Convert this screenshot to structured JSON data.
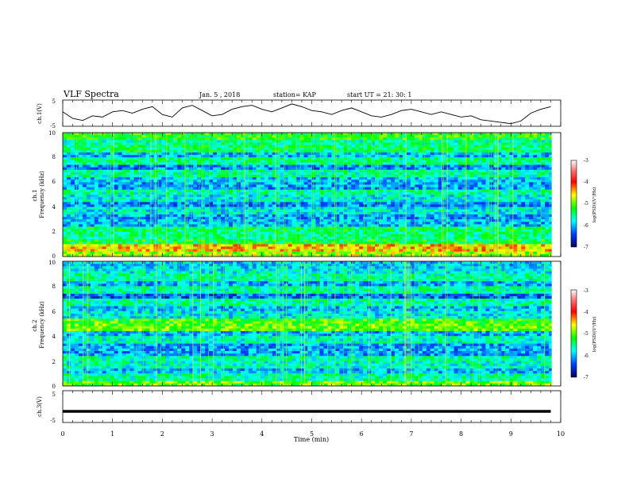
{
  "header": {
    "title": "VLF Spectra",
    "date": "Jan. 5 , 2018",
    "station": "station= KAP",
    "start_time": "start  UT =   21: 30: 1"
  },
  "chart_data": [
    {
      "type": "line",
      "title": "VLF Spectra",
      "ylabel": "ch.1(V)",
      "ylim": [
        -5,
        5
      ],
      "xlim": [
        0,
        10
      ],
      "yticks": [
        "5",
        "-5"
      ],
      "series": [
        {
          "x": [
            0,
            0.2,
            0.4,
            0.6,
            0.8,
            1.0,
            1.2,
            1.4,
            1.6,
            1.8,
            2.0,
            2.2,
            2.4,
            2.6,
            2.8,
            3.0,
            3.2,
            3.4,
            3.6,
            3.8,
            4.0,
            4.2,
            4.4,
            4.6,
            4.8,
            5.0,
            5.2,
            5.4,
            5.6,
            5.8,
            6.0,
            6.2,
            6.4,
            6.6,
            6.8,
            7.0,
            7.2,
            7.4,
            7.6,
            7.8,
            8.0,
            8.2,
            8.4,
            8.6,
            8.8,
            9.0,
            9.2,
            9.4,
            9.6,
            9.8
          ],
          "values": [
            0.5,
            -2.0,
            -2.8,
            -1.0,
            -1.5,
            0.5,
            1.0,
            0.0,
            1.5,
            2.5,
            -0.5,
            -1.5,
            2.0,
            3.0,
            1.0,
            -1.0,
            -0.5,
            1.5,
            2.5,
            3.0,
            1.5,
            0.5,
            2.0,
            3.5,
            2.5,
            1.0,
            0.5,
            -0.5,
            1.0,
            2.0,
            0.5,
            -1.0,
            -1.5,
            -0.5,
            1.0,
            1.5,
            0.5,
            -0.5,
            0.5,
            -0.5,
            -1.5,
            -1.0,
            -2.5,
            -3.0,
            -3.5,
            -4.0,
            -3.0,
            0.0,
            1.5,
            2.5
          ]
        }
      ]
    },
    {
      "type": "heatmap",
      "ylabel": "ch.1\nFrequency (kHz)",
      "ylim": [
        0,
        10
      ],
      "xlim": [
        0,
        10
      ],
      "yticks": [
        "0",
        "2",
        "4",
        "6",
        "8",
        "10"
      ],
      "colorbar": {
        "label": "log(PSD)(V²/Hz)",
        "ticks": [
          "-3",
          "-4",
          "-5",
          "-6",
          "-7"
        ],
        "range": [
          -7,
          -3
        ]
      },
      "mean_log_psd_by_frequency_kHz": {
        "frequencies": [
          0.25,
          0.75,
          1.25,
          1.75,
          2.25,
          2.75,
          3.25,
          3.75,
          4.25,
          4.75,
          5.25,
          5.75,
          6.25,
          6.75,
          7.25,
          7.75,
          8.25,
          8.75,
          9.25,
          9.75
        ],
        "values": [
          -4.8,
          -4.5,
          -5.3,
          -5.5,
          -5.4,
          -6.0,
          -6.1,
          -5.8,
          -6.2,
          -5.8,
          -5.6,
          -6.1,
          -6.0,
          -5.6,
          -6.2,
          -5.5,
          -6.0,
          -5.4,
          -5.6,
          -5.2
        ]
      }
    },
    {
      "type": "heatmap",
      "ylabel": "ch.2\nFrequency (kHz)",
      "ylim": [
        0,
        10
      ],
      "xlim": [
        0,
        10
      ],
      "yticks": [
        "0",
        "2",
        "4",
        "6",
        "8",
        "10"
      ],
      "colorbar": {
        "label": "log(PSD)(V²/Hz)",
        "ticks": [
          "-3",
          "-4",
          "-5",
          "-6",
          "-7"
        ],
        "range": [
          -7,
          -3
        ]
      },
      "mean_log_psd_by_frequency_kHz": {
        "frequencies": [
          0.25,
          0.75,
          1.25,
          1.75,
          2.25,
          2.75,
          3.25,
          3.75,
          4.25,
          4.75,
          5.25,
          5.75,
          6.25,
          6.75,
          7.25,
          7.75,
          8.25,
          8.75,
          9.25,
          9.75
        ],
        "values": [
          -5.0,
          -5.6,
          -6.0,
          -5.7,
          -5.6,
          -6.1,
          -6.1,
          -5.7,
          -6.0,
          -5.0,
          -5.1,
          -5.8,
          -6.0,
          -5.6,
          -6.3,
          -5.6,
          -6.1,
          -5.6,
          -5.8,
          -5.9
        ]
      }
    },
    {
      "type": "line",
      "ylabel": "ch.3(V)",
      "xlabel": "Time (min)",
      "ylim": [
        -5,
        5
      ],
      "xlim": [
        0,
        10
      ],
      "yticks": [
        "5",
        "-5"
      ],
      "xticks": [
        "0",
        "1",
        "2",
        "3",
        "4",
        "5",
        "6",
        "7",
        "8",
        "9",
        "10"
      ],
      "series": [
        {
          "x": [
            0,
            9.8
          ],
          "values": [
            -1.5,
            -1.5
          ]
        }
      ]
    }
  ]
}
